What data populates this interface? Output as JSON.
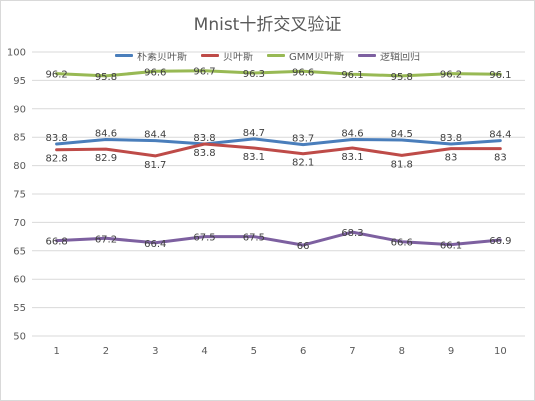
{
  "chart_data": {
    "type": "line",
    "title": "Mnist十折交叉验证",
    "categories": [
      "1",
      "2",
      "3",
      "4",
      "5",
      "6",
      "7",
      "8",
      "9",
      "10"
    ],
    "ylim": [
      50,
      100
    ],
    "yticks": [
      50,
      55,
      60,
      65,
      70,
      75,
      80,
      85,
      90,
      95,
      100
    ],
    "grid": true,
    "legend_position": "top",
    "series": [
      {
        "name": "朴素贝叶斯",
        "color": "#4a7ebb",
        "values": [
          83.8,
          84.6,
          84.4,
          83.8,
          84.7,
          83.7,
          84.6,
          84.5,
          83.8,
          84.4
        ],
        "labels": [
          "83.8",
          "84.6",
          "84.4",
          "83.8",
          "84.7",
          "83.7",
          "84.6",
          "84.5",
          "83.8",
          "84.4"
        ]
      },
      {
        "name": "贝叶斯",
        "color": "#be4b48",
        "values": [
          82.8,
          82.9,
          81.7,
          83.8,
          83.1,
          82.1,
          83.1,
          81.8,
          83,
          83
        ],
        "labels": [
          "82.8",
          "82.9",
          "81.7",
          "83.8",
          "83.1",
          "82.1",
          "83.1",
          "81.8",
          "83",
          "83"
        ]
      },
      {
        "name": "GMM贝叶斯",
        "color": "#98b954",
        "values": [
          96.2,
          95.8,
          96.6,
          96.7,
          96.3,
          96.6,
          96.1,
          95.8,
          96.2,
          96.1
        ],
        "labels": [
          "96.2",
          "95.8",
          "96.6",
          "96.7",
          "96.3",
          "96.6",
          "96.1",
          "95.8",
          "96.2",
          "96.1"
        ]
      },
      {
        "name": "逻辑回归",
        "color": "#7d60a0",
        "values": [
          66.8,
          67.2,
          66.4,
          67.5,
          67.5,
          66,
          68.3,
          66.6,
          66.1,
          66.9
        ],
        "labels": [
          "66.8",
          "67.2",
          "66.4",
          "67.5",
          "67.5",
          "66",
          "68.3",
          "66.6",
          "66.1",
          "66.9"
        ]
      }
    ]
  }
}
